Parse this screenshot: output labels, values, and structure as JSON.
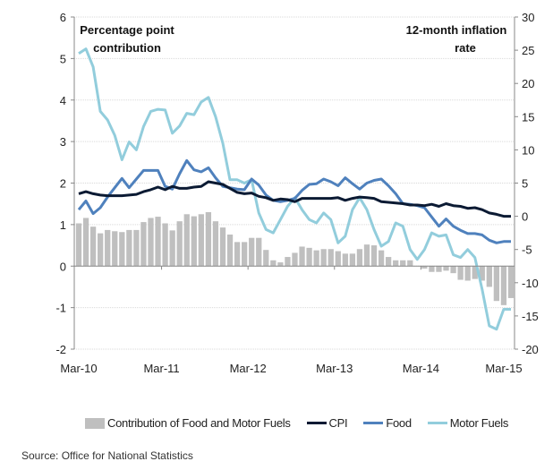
{
  "chart_data": {
    "type": "bar+line",
    "title": "",
    "annotations": {
      "left_axis_title": [
        "Percentage point",
        "contribution"
      ],
      "right_axis_title": [
        "12-month inflation",
        "rate"
      ]
    },
    "x_tick_labels": [
      "Mar-10",
      "Mar-11",
      "Mar-12",
      "Mar-13",
      "Mar-14",
      "Mar-15"
    ],
    "x_range": [
      "Mar-10",
      "Mar-15"
    ],
    "left_axis": {
      "label": "Percentage point contribution",
      "ylim": [
        -2,
        6
      ],
      "ticks": [
        -2,
        -1,
        0,
        1,
        2,
        3,
        4,
        5,
        6
      ]
    },
    "right_axis": {
      "label": "12-month inflation rate",
      "ylim": [
        -20,
        30
      ],
      "ticks": [
        -20,
        -15,
        -10,
        -5,
        0,
        5,
        10,
        15,
        20,
        25,
        30
      ]
    },
    "grid": true,
    "legend_position": "bottom",
    "colors": {
      "bars": "#bfbfbf",
      "cpi": "#0b1a33",
      "food": "#4f81bd",
      "motor_fuels": "#92cddc"
    },
    "bar_series": {
      "name": "Contribution of Food and Motor Fuels",
      "axis": "left",
      "values": [
        1.03,
        1.16,
        0.95,
        0.79,
        0.87,
        0.84,
        0.82,
        0.87,
        0.87,
        1.06,
        1.16,
        1.19,
        1.03,
        0.86,
        1.08,
        1.25,
        1.2,
        1.25,
        1.3,
        1.08,
        0.93,
        0.76,
        0.58,
        0.58,
        0.68,
        0.68,
        0.39,
        0.14,
        0.09,
        0.22,
        0.32,
        0.47,
        0.44,
        0.38,
        0.41,
        0.41,
        0.36,
        0.3,
        0.3,
        0.41,
        0.52,
        0.5,
        0.38,
        0.22,
        0.14,
        0.14,
        0.14,
        0.0,
        -0.06,
        -0.14,
        -0.14,
        -0.11,
        -0.17,
        -0.33,
        -0.35,
        -0.31,
        -0.35,
        -0.5,
        -0.84,
        -0.94,
        -0.77
      ]
    },
    "series": [
      {
        "name": "CPI",
        "axis": "right",
        "values": [
          3.4,
          3.7,
          3.4,
          3.2,
          3.1,
          3.1,
          3.1,
          3.2,
          3.3,
          3.7,
          4.0,
          4.4,
          4.0,
          4.5,
          4.2,
          4.2,
          4.4,
          4.5,
          5.2,
          5.0,
          4.8,
          4.2,
          3.6,
          3.4,
          3.5,
          3.0,
          2.8,
          2.4,
          2.6,
          2.5,
          2.2,
          2.7,
          2.7,
          2.7,
          2.7,
          2.7,
          2.8,
          2.4,
          2.7,
          2.9,
          2.8,
          2.7,
          2.2,
          2.1,
          2.0,
          1.9,
          1.7,
          1.7,
          1.6,
          1.8,
          1.5,
          1.9,
          1.6,
          1.5,
          1.2,
          1.3,
          1.0,
          0.5,
          0.3,
          0.0,
          0.0
        ]
      },
      {
        "name": "Food",
        "axis": "right",
        "values": [
          1.0,
          2.3,
          0.4,
          1.3,
          2.9,
          4.3,
          5.7,
          4.3,
          5.6,
          6.9,
          6.9,
          6.9,
          4.5,
          4.1,
          6.4,
          8.4,
          7.0,
          6.7,
          7.3,
          5.8,
          4.5,
          4.3,
          4.1,
          4.0,
          5.6,
          4.7,
          3.2,
          2.4,
          2.2,
          2.4,
          2.7,
          3.9,
          4.8,
          4.9,
          5.6,
          5.2,
          4.6,
          5.8,
          4.9,
          4.1,
          5.0,
          5.4,
          5.6,
          4.6,
          3.4,
          1.9,
          1.8,
          1.6,
          1.3,
          -0.1,
          -1.5,
          -0.4,
          -1.5,
          -2.1,
          -2.6,
          -2.6,
          -2.8,
          -3.6,
          -4.0,
          -3.8,
          -3.8
        ]
      },
      {
        "name": "Motor Fuels",
        "axis": "right",
        "values": [
          24.5,
          25.2,
          22.5,
          15.8,
          14.5,
          12.2,
          8.5,
          11.2,
          10.0,
          13.5,
          15.8,
          16.1,
          16.0,
          12.5,
          13.6,
          15.5,
          15.3,
          17.2,
          17.9,
          15.0,
          11.0,
          5.5,
          5.5,
          5.0,
          5.5,
          0.5,
          -2.0,
          -2.5,
          -0.5,
          1.5,
          2.8,
          1.0,
          -0.5,
          -1.0,
          0.5,
          -0.5,
          -4.0,
          -3.0,
          1.0,
          2.8,
          1.0,
          -2.0,
          -4.5,
          -3.8,
          -1.0,
          -1.5,
          -5.0,
          -6.5,
          -5.0,
          -2.5,
          -3.0,
          -2.8,
          -5.8,
          -6.2,
          -5.0,
          -6.2,
          -11.0,
          -16.5,
          -17.0,
          -14.0,
          -14.0
        ]
      }
    ],
    "legend": [
      {
        "name": "Contribution of Food and Motor Fuels",
        "kind": "bar"
      },
      {
        "name": "CPI",
        "kind": "line"
      },
      {
        "name": "Food",
        "kind": "line"
      },
      {
        "name": "Motor Fuels",
        "kind": "line"
      }
    ]
  },
  "source": "Source: Office for National Statistics"
}
